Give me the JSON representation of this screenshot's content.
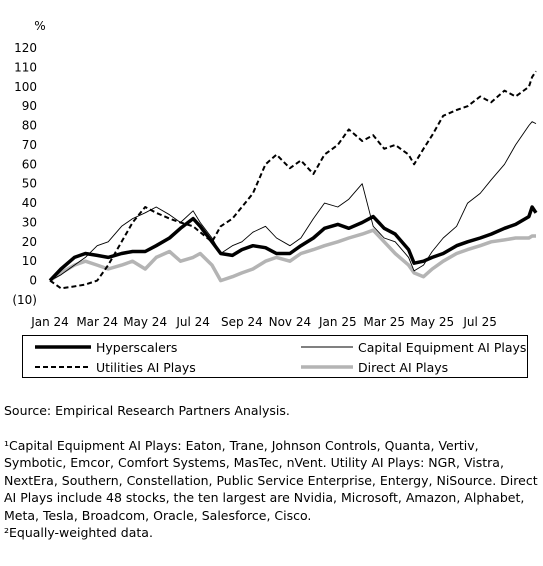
{
  "chart_data": {
    "type": "line",
    "ylabel": "%",
    "ylim": [
      -10,
      120
    ],
    "yticks": [
      -10,
      0,
      10,
      20,
      30,
      40,
      50,
      60,
      70,
      80,
      90,
      100,
      110,
      120
    ],
    "ytick_labels": [
      "(10)",
      "0",
      "10",
      "20",
      "30",
      "40",
      "50",
      "60",
      "70",
      "80",
      "90",
      "100",
      "110",
      "120"
    ],
    "xlim": [
      "2024-01-01",
      "2025-09-10"
    ],
    "xticks": [
      "2024-01",
      "2024-03",
      "2024-05",
      "2024-07",
      "2024-09",
      "2024-11",
      "2025-01",
      "2025-03",
      "2025-05",
      "2025-07"
    ],
    "xtick_labels": [
      "Jan 24",
      "Mar 24",
      "May 24",
      "Jul 24",
      "Sep 24",
      "Nov 24",
      "Jan 25",
      "Mar 25",
      "May 25",
      "Jul 25"
    ],
    "grid": false,
    "legend_position": "bottom",
    "series": [
      {
        "name": "Hyperscalers",
        "style": "thick-solid",
        "color": "#000000",
        "x": [
          "2024-01-01",
          "2024-01-15",
          "2024-02-01",
          "2024-02-15",
          "2024-03-01",
          "2024-03-15",
          "2024-04-01",
          "2024-04-15",
          "2024-05-01",
          "2024-05-15",
          "2024-06-01",
          "2024-06-15",
          "2024-07-01",
          "2024-07-10",
          "2024-07-25",
          "2024-08-05",
          "2024-08-20",
          "2024-09-01",
          "2024-09-15",
          "2024-10-01",
          "2024-10-15",
          "2024-11-01",
          "2024-11-15",
          "2024-12-01",
          "2024-12-15",
          "2025-01-01",
          "2025-01-15",
          "2025-02-01",
          "2025-02-15",
          "2025-03-01",
          "2025-03-15",
          "2025-04-01",
          "2025-04-08",
          "2025-04-20",
          "2025-05-01",
          "2025-05-15",
          "2025-06-01",
          "2025-06-15",
          "2025-07-01",
          "2025-07-15",
          "2025-08-01",
          "2025-08-15",
          "2025-09-01",
          "2025-09-05",
          "2025-09-10"
        ],
        "y": [
          0,
          6,
          12,
          14,
          13,
          12,
          14,
          15,
          15,
          18,
          22,
          27,
          32,
          28,
          20,
          14,
          13,
          16,
          18,
          17,
          14,
          14,
          18,
          22,
          27,
          29,
          27,
          30,
          33,
          27,
          24,
          16,
          9,
          10,
          12,
          14,
          18,
          20,
          22,
          24,
          27,
          29,
          33,
          38,
          35
        ]
      },
      {
        "name": "Capital Equipment AI Plays",
        "style": "thin-solid",
        "color": "#000000",
        "x": [
          "2024-01-01",
          "2024-01-15",
          "2024-02-01",
          "2024-02-15",
          "2024-03-01",
          "2024-03-15",
          "2024-04-01",
          "2024-04-15",
          "2024-05-01",
          "2024-05-15",
          "2024-06-01",
          "2024-06-15",
          "2024-07-01",
          "2024-07-10",
          "2024-07-25",
          "2024-08-05",
          "2024-08-20",
          "2024-09-01",
          "2024-09-15",
          "2024-10-01",
          "2024-10-15",
          "2024-11-01",
          "2024-11-15",
          "2024-12-01",
          "2024-12-15",
          "2025-01-01",
          "2025-01-15",
          "2025-02-01",
          "2025-02-15",
          "2025-03-01",
          "2025-03-15",
          "2025-04-01",
          "2025-04-08",
          "2025-04-20",
          "2025-05-01",
          "2025-05-15",
          "2025-06-01",
          "2025-06-15",
          "2025-07-01",
          "2025-07-15",
          "2025-08-01",
          "2025-08-15",
          "2025-09-01",
          "2025-09-05",
          "2025-09-10"
        ],
        "y": [
          0,
          3,
          8,
          12,
          18,
          20,
          28,
          32,
          35,
          38,
          34,
          30,
          36,
          30,
          22,
          14,
          18,
          20,
          25,
          28,
          22,
          18,
          22,
          32,
          40,
          38,
          42,
          50,
          28,
          22,
          20,
          12,
          5,
          8,
          15,
          22,
          28,
          40,
          45,
          52,
          60,
          70,
          80,
          82,
          81
        ]
      },
      {
        "name": "Utilities AI Plays",
        "style": "dashed",
        "color": "#000000",
        "x": [
          "2024-01-01",
          "2024-01-15",
          "2024-02-01",
          "2024-02-15",
          "2024-03-01",
          "2024-03-15",
          "2024-04-01",
          "2024-04-15",
          "2024-05-01",
          "2024-05-15",
          "2024-06-01",
          "2024-06-15",
          "2024-07-01",
          "2024-07-10",
          "2024-07-25",
          "2024-08-05",
          "2024-08-20",
          "2024-09-01",
          "2024-09-15",
          "2024-10-01",
          "2024-10-15",
          "2024-11-01",
          "2024-11-15",
          "2024-12-01",
          "2024-12-15",
          "2025-01-01",
          "2025-01-15",
          "2025-02-01",
          "2025-02-15",
          "2025-03-01",
          "2025-03-15",
          "2025-04-01",
          "2025-04-08",
          "2025-04-20",
          "2025-05-01",
          "2025-05-15",
          "2025-06-01",
          "2025-06-15",
          "2025-07-01",
          "2025-07-15",
          "2025-08-01",
          "2025-08-15",
          "2025-09-01",
          "2025-09-05",
          "2025-09-10"
        ],
        "y": [
          0,
          -4,
          -3,
          -2,
          0,
          8,
          20,
          30,
          38,
          35,
          32,
          30,
          28,
          25,
          20,
          28,
          32,
          38,
          45,
          60,
          65,
          58,
          62,
          55,
          65,
          70,
          78,
          72,
          75,
          68,
          70,
          65,
          60,
          68,
          75,
          85,
          88,
          90,
          95,
          92,
          98,
          95,
          100,
          105,
          108
        ]
      },
      {
        "name": "Direct AI Plays",
        "style": "thick-gray",
        "color": "#b4b4b4",
        "x": [
          "2024-01-01",
          "2024-01-15",
          "2024-02-01",
          "2024-02-15",
          "2024-03-01",
          "2024-03-15",
          "2024-04-01",
          "2024-04-15",
          "2024-05-01",
          "2024-05-15",
          "2024-06-01",
          "2024-06-15",
          "2024-07-01",
          "2024-07-10",
          "2024-07-25",
          "2024-08-05",
          "2024-08-20",
          "2024-09-01",
          "2024-09-15",
          "2024-10-01",
          "2024-10-15",
          "2024-11-01",
          "2024-11-15",
          "2024-12-01",
          "2024-12-15",
          "2025-01-01",
          "2025-01-15",
          "2025-02-01",
          "2025-02-15",
          "2025-03-01",
          "2025-03-15",
          "2025-04-01",
          "2025-04-08",
          "2025-04-20",
          "2025-05-01",
          "2025-05-15",
          "2025-06-01",
          "2025-06-15",
          "2025-07-01",
          "2025-07-15",
          "2025-08-01",
          "2025-08-15",
          "2025-09-01",
          "2025-09-05",
          "2025-09-10"
        ],
        "y": [
          0,
          4,
          8,
          10,
          8,
          6,
          8,
          10,
          6,
          12,
          15,
          10,
          12,
          14,
          8,
          0,
          2,
          4,
          6,
          10,
          12,
          10,
          14,
          16,
          18,
          20,
          22,
          24,
          26,
          20,
          14,
          8,
          4,
          2,
          6,
          10,
          14,
          16,
          18,
          20,
          21,
          22,
          22,
          23,
          23
        ]
      }
    ]
  },
  "legend": [
    {
      "label": "Hyperscalers"
    },
    {
      "label": "Capital Equipment AI Plays"
    },
    {
      "label": "Utilities AI Plays"
    },
    {
      "label": "Direct AI Plays"
    }
  ],
  "notes": {
    "source": "Source: Empirical Research Partners Analysis.",
    "footnote1": "¹Capital Equipment AI Plays: Eaton, Trane, Johnson Controls, Quanta, Vertiv, Symbotic, Emcor, Comfort Systems, MasTec, nVent.  Utility AI Plays: NGR, Vistra, NextEra, Southern, Constellation, Public Service Enterprise, Entergy, NiSource.  Direct AI Plays include 48 stocks, the ten largest are Nvidia, Microsoft, Amazon, Alphabet, Meta, Tesla, Broadcom, Oracle, Salesforce, Cisco.",
    "footnote2": "²Equally-weighted data."
  }
}
